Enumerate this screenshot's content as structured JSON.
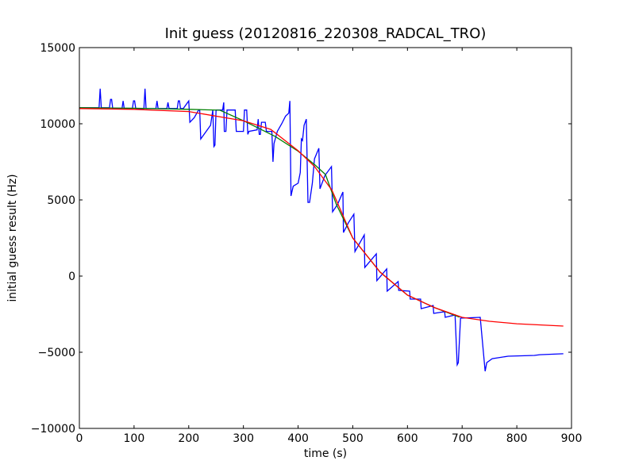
{
  "chart_data": {
    "type": "line",
    "title": "Init guess (20120816_220308_RADCAL_TRO)",
    "xlabel": "time (s)",
    "ylabel": "initial guess result (Hz)",
    "xlim": [
      0,
      900
    ],
    "ylim": [
      -10000,
      15000
    ],
    "xticks": [
      0,
      100,
      200,
      300,
      400,
      500,
      600,
      700,
      800,
      900
    ],
    "yticks": [
      -10000,
      -5000,
      0,
      5000,
      10000,
      15000
    ],
    "xtick_labels": [
      "0",
      "100",
      "200",
      "300",
      "400",
      "500",
      "600",
      "700",
      "800",
      "900"
    ],
    "ytick_labels": [
      "−10000",
      "−5000",
      "0",
      "5000",
      "10000",
      "15000"
    ],
    "grid": false,
    "series": [
      {
        "name": "measured",
        "color": "#0000ff",
        "points": [
          [
            0,
            11050
          ],
          [
            36,
            11050
          ],
          [
            38,
            12300
          ],
          [
            40,
            11050
          ],
          [
            55,
            11050
          ],
          [
            57,
            11600
          ],
          [
            59,
            11600
          ],
          [
            61,
            11000
          ],
          [
            78,
            11000
          ],
          [
            80,
            11500
          ],
          [
            82,
            11000
          ],
          [
            97,
            11000
          ],
          [
            99,
            11500
          ],
          [
            101,
            11500
          ],
          [
            103,
            11000
          ],
          [
            118,
            11000
          ],
          [
            120,
            12300
          ],
          [
            122,
            11000
          ],
          [
            140,
            11000
          ],
          [
            142,
            11500
          ],
          [
            144,
            11000
          ],
          [
            160,
            11000
          ],
          [
            162,
            11400
          ],
          [
            164,
            11000
          ],
          [
            179,
            11000
          ],
          [
            181,
            11500
          ],
          [
            183,
            11500
          ],
          [
            185,
            11000
          ],
          [
            190,
            11000
          ],
          [
            200,
            11500
          ],
          [
            202,
            10100
          ],
          [
            210,
            10400
          ],
          [
            218,
            10900
          ],
          [
            220,
            10900
          ],
          [
            222,
            9000
          ],
          [
            240,
            9900
          ],
          [
            244,
            10900
          ],
          [
            246,
            8500
          ],
          [
            248,
            8600
          ],
          [
            250,
            10900
          ],
          [
            262,
            10900
          ],
          [
            264,
            11400
          ],
          [
            265,
            9500
          ],
          [
            268,
            9500
          ],
          [
            270,
            10900
          ],
          [
            285,
            10900
          ],
          [
            287,
            9500
          ],
          [
            300,
            9500
          ],
          [
            302,
            10900
          ],
          [
            306,
            10900
          ],
          [
            308,
            9300
          ],
          [
            310,
            9500
          ],
          [
            325,
            9600
          ],
          [
            327,
            10300
          ],
          [
            329,
            9300
          ],
          [
            331,
            9300
          ],
          [
            333,
            10100
          ],
          [
            340,
            10100
          ],
          [
            342,
            9500
          ],
          [
            352,
            9500
          ],
          [
            354,
            7500
          ],
          [
            356,
            8700
          ],
          [
            362,
            9500
          ],
          [
            370,
            10000
          ],
          [
            377,
            10500
          ],
          [
            383,
            10700
          ],
          [
            385,
            11500
          ],
          [
            387,
            5260
          ],
          [
            391,
            5900
          ],
          [
            400,
            6100
          ],
          [
            404,
            6800
          ],
          [
            406,
            9000
          ],
          [
            408,
            8900
          ],
          [
            411,
            9900
          ],
          [
            415,
            10300
          ],
          [
            418,
            4840
          ],
          [
            421,
            4840
          ],
          [
            426,
            6100
          ],
          [
            430,
            7700
          ],
          [
            438,
            8390
          ],
          [
            440,
            5730
          ],
          [
            449,
            6600
          ],
          [
            461,
            7190
          ],
          [
            463,
            4220
          ],
          [
            472,
            4700
          ],
          [
            482,
            5520
          ],
          [
            483,
            2860
          ],
          [
            492,
            3500
          ],
          [
            502,
            4060
          ],
          [
            504,
            1610
          ],
          [
            521,
            2700
          ],
          [
            522,
            570
          ],
          [
            543,
            1460
          ],
          [
            544,
            -300
          ],
          [
            562,
            470
          ],
          [
            563,
            -990
          ],
          [
            583,
            -360
          ],
          [
            584,
            -940
          ],
          [
            604,
            -990
          ],
          [
            605,
            -1510
          ],
          [
            624,
            -1510
          ],
          [
            625,
            -2140
          ],
          [
            647,
            -1930
          ],
          [
            648,
            -2450
          ],
          [
            668,
            -2340
          ],
          [
            669,
            -2710
          ],
          [
            687,
            -2550
          ],
          [
            691,
            -5830
          ],
          [
            693,
            -5680
          ],
          [
            697,
            -2760
          ],
          [
            733,
            -2710
          ],
          [
            742,
            -6250
          ],
          [
            745,
            -5680
          ],
          [
            755,
            -5420
          ],
          [
            784,
            -5260
          ],
          [
            832,
            -5210
          ],
          [
            842,
            -5160
          ],
          [
            885,
            -5100
          ]
        ]
      },
      {
        "name": "fit-green",
        "color": "#008000",
        "points": [
          [
            0,
            11050
          ],
          [
            100,
            11020
          ],
          [
            200,
            10950
          ],
          [
            257,
            10890
          ],
          [
            300,
            10200
          ],
          [
            358,
            9170
          ],
          [
            400,
            8200
          ],
          [
            431,
            7290
          ],
          [
            450,
            6670
          ],
          [
            470,
            4700
          ],
          [
            500,
            2500
          ],
          [
            550,
            260
          ],
          [
            600,
            -1250
          ],
          [
            650,
            -2080
          ],
          [
            695,
            -2700
          ]
        ]
      },
      {
        "name": "fit-red",
        "color": "#ff0000",
        "points": [
          [
            0,
            11000
          ],
          [
            100,
            10950
          ],
          [
            200,
            10800
          ],
          [
            300,
            10200
          ],
          [
            350,
            9630
          ],
          [
            400,
            8230
          ],
          [
            430,
            7200
          ],
          [
            462,
            5630
          ],
          [
            500,
            2500
          ],
          [
            550,
            260
          ],
          [
            600,
            -1250
          ],
          [
            650,
            -2080
          ],
          [
            700,
            -2710
          ],
          [
            750,
            -2970
          ],
          [
            800,
            -3130
          ],
          [
            885,
            -3280
          ]
        ]
      }
    ]
  }
}
